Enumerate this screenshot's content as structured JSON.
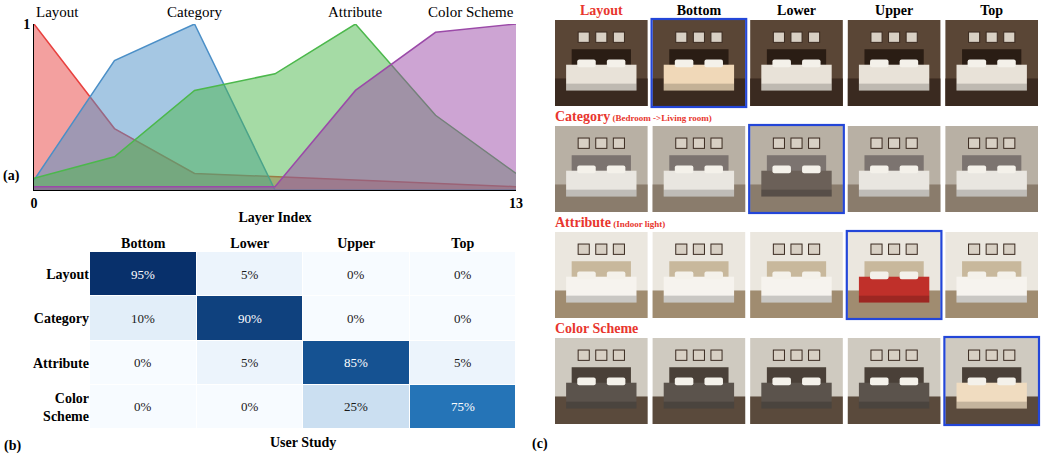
{
  "chart_data": [
    {
      "panel_label": "(a)",
      "type": "area",
      "x_label": "Layer Index",
      "x": [
        0,
        2.17,
        4.33,
        6.5,
        8.67,
        10.83,
        13
      ],
      "xlim": [
        0,
        13
      ],
      "xticks": [
        0,
        13
      ],
      "ylim": [
        0,
        1
      ],
      "yticks": [
        1
      ],
      "series": [
        {
          "name": "Layout",
          "color": "#e8413f",
          "values": [
            1,
            0.37,
            0.1,
            0.08,
            0.06,
            0.04,
            0.02
          ]
        },
        {
          "name": "Category",
          "color": "#4b8fc7",
          "values": [
            0.06,
            0.78,
            1,
            0,
            0,
            0,
            0
          ]
        },
        {
          "name": "Attribute",
          "color": "#4cb84c",
          "values": [
            0.07,
            0.2,
            0.6,
            0.7,
            1,
            0.45,
            0.1
          ]
        },
        {
          "name": "Color Scheme",
          "color": "#9b4aa8",
          "values": [
            0.02,
            0.02,
            0.02,
            0.02,
            0.6,
            0.95,
            1
          ]
        }
      ]
    },
    {
      "panel_label": "(b)",
      "type": "heatmap",
      "x_label": "User Study",
      "categories": [
        "Bottom",
        "Lower",
        "Upper",
        "Top"
      ],
      "rows": [
        "Layout",
        "Category",
        "Attribute",
        "Color Scheme"
      ],
      "values": [
        [
          95,
          5,
          0,
          0
        ],
        [
          10,
          90,
          0,
          0
        ],
        [
          0,
          5,
          85,
          5
        ],
        [
          0,
          0,
          25,
          75
        ]
      ],
      "value_labels": [
        [
          "95%",
          "5%",
          "0%",
          "0%"
        ],
        [
          "10%",
          "90%",
          "0%",
          "0%"
        ],
        [
          "0%",
          "5%",
          "85%",
          "5%"
        ],
        [
          "0%",
          "0%",
          "25%",
          "75%"
        ]
      ]
    }
  ],
  "image_grid": {
    "panel_label": "(c)",
    "columns": [
      "Bottom",
      "Lower",
      "Upper",
      "Top"
    ],
    "rows": [
      {
        "label": "Layout",
        "highlight": "Bottom"
      },
      {
        "label": "Category",
        "note": "(Bedroom ->Living room)",
        "highlight": "Lower"
      },
      {
        "label": "Attribute",
        "note": "(Indoor light)",
        "highlight": "Upper"
      },
      {
        "label": "Color Scheme",
        "highlight": "Top"
      }
    ]
  }
}
